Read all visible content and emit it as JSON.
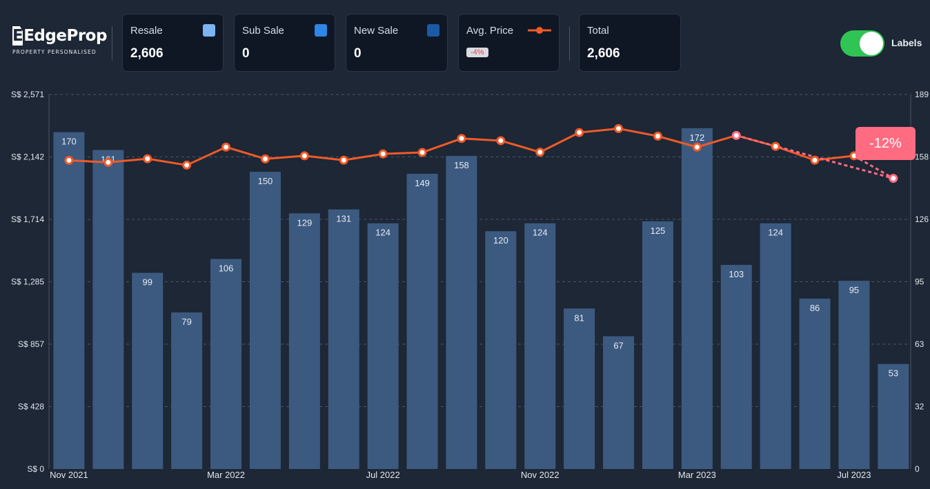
{
  "brand": {
    "name": "EdgeProp",
    "tagline": "PROPERTY PERSONALISED"
  },
  "cards": [
    {
      "id": "resale",
      "label": "Resale",
      "value": "2,606",
      "color": "#7cb3f0"
    },
    {
      "id": "sub",
      "label": "Sub Sale",
      "value": "0",
      "color": "#2f86e4"
    },
    {
      "id": "new",
      "label": "New Sale",
      "value": "0",
      "color": "#1b5aa6"
    },
    {
      "id": "avg",
      "label": "Avg. Price",
      "badge": "-4%",
      "color": "#f05a28"
    },
    {
      "id": "total",
      "label": "Total",
      "value": "2,606"
    }
  ],
  "toggle": {
    "label": "Labels",
    "on": true
  },
  "change_chip": "-12%",
  "chart_data": {
    "type": "bar",
    "x_tick_labels": [
      "Nov 2021",
      "Mar 2022",
      "Jul 2022",
      "Nov 2022",
      "Mar 2023",
      "Jul 2023"
    ],
    "x_tick_index": [
      0,
      4,
      8,
      12,
      16,
      20
    ],
    "left_axis": {
      "ticks": [
        "S$ 0",
        "S$ 428",
        "S$ 857",
        "S$ 1,285",
        "S$ 1,714",
        "S$ 2,142",
        "S$ 2,571"
      ],
      "min": 0,
      "max": 2571
    },
    "right_axis": {
      "ticks": [
        "0",
        "32",
        "63",
        "95",
        "126",
        "158",
        "189"
      ],
      "min": 0,
      "max": 189
    },
    "grid": "horizontal-dashed",
    "bar_color": "#3c5a80",
    "line_color": "#f05a28",
    "series": [
      {
        "name": "Resale",
        "type": "bar",
        "axis": "right",
        "values": [
          170,
          161,
          99,
          79,
          106,
          150,
          129,
          131,
          124,
          149,
          158,
          120,
          124,
          81,
          67,
          125,
          172,
          103,
          124,
          86,
          95,
          53
        ]
      },
      {
        "name": "Avg. Price",
        "type": "line",
        "axis": "left",
        "values": [
          2119,
          2105,
          2130,
          2086,
          2210,
          2129,
          2150,
          2120,
          2163,
          2173,
          2269,
          2254,
          2175,
          2310,
          2337,
          2285,
          2210,
          2290,
          2215,
          2120,
          2150,
          1995
        ]
      }
    ]
  }
}
